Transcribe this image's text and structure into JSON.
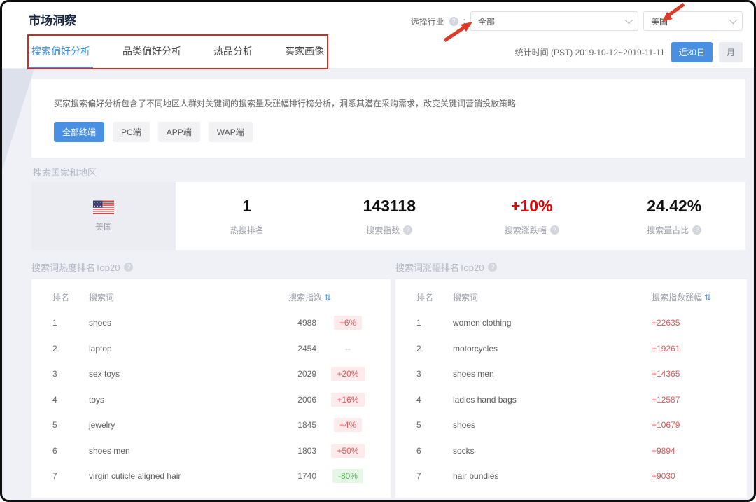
{
  "header": {
    "title": "市场洞察",
    "tabs": [
      {
        "label": "搜索偏好分析",
        "active": true
      },
      {
        "label": "品类偏好分析",
        "active": false
      },
      {
        "label": "热品分析",
        "active": false
      },
      {
        "label": "买家画像",
        "active": false
      }
    ],
    "industry": {
      "label": "选择行业",
      "colon": ":",
      "value": "全部"
    },
    "country_value": "美国",
    "stats_time": "统计时间 (PST) 2019-10-12~2019-11-11",
    "range_buttons": [
      "近30日",
      "月"
    ]
  },
  "overview": {
    "description": "买家搜索偏好分析包含了不同地区人群对关键词的搜索量及涨幅排行榜分析，洞悉其潜在采购需求，改变关键词营销投放策略",
    "terminal_buttons": [
      {
        "label": "全部终端",
        "active": true
      },
      {
        "label": "PC端",
        "active": false
      },
      {
        "label": "APP端",
        "active": false
      },
      {
        "label": "WAP端",
        "active": false
      }
    ]
  },
  "region_section": {
    "title": "搜索国家和地区",
    "country": "美国",
    "flag": "us-flag",
    "stats": [
      {
        "value": "1",
        "label": "热搜排名",
        "has_help": false
      },
      {
        "value": "143118",
        "label": "搜索指数",
        "has_help": true
      },
      {
        "value": "+10%",
        "label": "搜索涨跌幅",
        "has_help": true,
        "color": "#e60000"
      },
      {
        "value": "24.42%",
        "label": "搜索量占比",
        "has_help": true
      }
    ]
  },
  "tables": {
    "left": {
      "title": "搜索词热度排名Top20",
      "columns": {
        "rank": "排名",
        "keyword": "搜索词",
        "value": "搜索指数"
      },
      "rows": [
        {
          "rank": "1",
          "keyword": "shoes",
          "value": "4988",
          "change": "+6%",
          "change_type": "up"
        },
        {
          "rank": "2",
          "keyword": "laptop",
          "value": "2454",
          "change": "--",
          "change_type": "none"
        },
        {
          "rank": "3",
          "keyword": "sex toys",
          "value": "2029",
          "change": "+20%",
          "change_type": "up"
        },
        {
          "rank": "4",
          "keyword": "toys",
          "value": "2006",
          "change": "+16%",
          "change_type": "up"
        },
        {
          "rank": "5",
          "keyword": "jewelry",
          "value": "1845",
          "change": "+4%",
          "change_type": "up"
        },
        {
          "rank": "6",
          "keyword": "shoes men",
          "value": "1803",
          "change": "+50%",
          "change_type": "up"
        },
        {
          "rank": "7",
          "keyword": "virgin cuticle aligned hair",
          "value": "1740",
          "change": "-80%",
          "change_type": "down"
        }
      ]
    },
    "right": {
      "title": "搜索词涨幅排名Top20",
      "columns": {
        "rank": "排名",
        "keyword": "搜索词",
        "value": "搜索指数涨幅"
      },
      "rows": [
        {
          "rank": "1",
          "keyword": "women clothing",
          "change": "+22635"
        },
        {
          "rank": "2",
          "keyword": "motorcycles",
          "change": "+19261"
        },
        {
          "rank": "3",
          "keyword": "shoes men",
          "change": "+14365"
        },
        {
          "rank": "4",
          "keyword": "ladies hand bags",
          "change": "+12587"
        },
        {
          "rank": "5",
          "keyword": "shoes",
          "change": "+10679"
        },
        {
          "rank": "6",
          "keyword": "socks",
          "change": "+9894"
        },
        {
          "rank": "7",
          "keyword": "hair bundles",
          "change": "+9030"
        }
      ]
    }
  },
  "icons": {
    "help": "?",
    "sort": "⇅"
  },
  "colors": {
    "accent_blue": "#4a90e2",
    "tab_active_blue": "#3a8ee6",
    "stat_red": "#e60000",
    "change_red": "#e05858",
    "change_green": "#56b156",
    "annotation_red": "#dc271e",
    "page_bg": "#eff1f6",
    "country_cell_bg": "#ebedf2"
  }
}
